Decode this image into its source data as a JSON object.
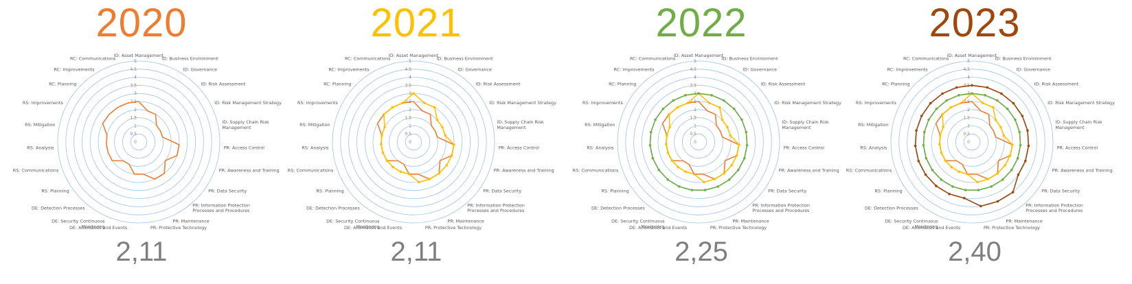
{
  "chart_data": {
    "type": "radar",
    "axes": [
      "ID: Asset Management",
      "ID: Business Environment",
      "ID: Governance",
      "ID: Risk Assessment",
      "ID: Risk Management Strategy",
      "ID: Supply Chain Risk Management",
      "PR: Access Control",
      "PR: Awareness and Training",
      "PR: Data Security",
      "PR: Information Protection Processes and Procedures",
      "PR: Maintenance",
      "PR: Protective Technology",
      "DE: Anomalies and Events",
      "DE: Security Continuous Monitoring",
      "DE: Detection Processes",
      "RS: Planning",
      "RS: Communications",
      "RS: Analysis",
      "RS: Mitigation",
      "RS: Improvements",
      "RC: Planning",
      "RC: Improvements",
      "RC: Communications"
    ],
    "axis_label_lines": [
      [
        "ID: Asset Management"
      ],
      [
        "ID: Business Environment"
      ],
      [
        "ID: Governance"
      ],
      [
        "ID: Risk Assessment"
      ],
      [
        "ID: Risk Management Strategy"
      ],
      [
        "ID: Supply Chain Risk",
        "Management"
      ],
      [
        "PR: Access Control"
      ],
      [
        "PR: Awareness and Training"
      ],
      [
        "PR: Data Security"
      ],
      [
        "PR: Information Protection",
        "Processes and Procedures"
      ],
      [
        "PR: Maintenance"
      ],
      [
        "PR: Protective Technology"
      ],
      [
        "DE: Anomalies and Events"
      ],
      [
        "DE: Security Continuous",
        "Monitoring"
      ],
      [
        "DE: Detection Processes"
      ],
      [
        "RS: Planning"
      ],
      [
        "RS: Communications"
      ],
      [
        "RS: Analysis"
      ],
      [
        "RS: Mitigation"
      ],
      [
        "RS: Improvements"
      ],
      [
        "RC: Planning"
      ],
      [
        "RC: Improvements"
      ],
      [
        "RC: Communications"
      ]
    ],
    "rmin": 0,
    "rmax": 5,
    "ticks": [
      "0",
      "0.5",
      "1",
      "1.5",
      "2",
      "2.5",
      "3",
      "3.5",
      "4",
      "4.5",
      "5"
    ],
    "grid_color": "#9dc3e6",
    "series": [
      {
        "key": "2020",
        "color": "#ed7d31",
        "markers": false,
        "values": [
          2.5,
          2,
          2,
          1.5,
          1.5,
          1.5,
          2.5,
          2.5,
          2,
          2.5,
          2.5,
          2,
          2,
          1.5,
          1.5,
          2,
          2,
          2,
          2,
          2.5,
          2.5,
          2.5,
          2.5
        ]
      },
      {
        "key": "2021",
        "color": "#ffc000",
        "markers": true,
        "values": [
          3,
          2.5,
          2.5,
          2,
          2,
          2,
          2.5,
          2.5,
          2.5,
          2.5,
          2.5,
          2.5,
          2,
          2,
          2,
          2,
          2,
          2,
          2,
          2,
          2.5,
          2.5,
          2.5
        ]
      },
      {
        "key": "2022",
        "color": "#70ad47",
        "markers": true,
        "values": [
          3,
          3,
          3,
          3,
          3,
          3,
          3,
          3,
          3,
          3,
          3,
          3,
          3,
          3,
          3,
          3,
          3,
          3,
          3,
          3,
          3,
          3,
          3
        ]
      },
      {
        "key": "2023",
        "color": "#9e480e",
        "markers": true,
        "values": [
          3.5,
          3.5,
          3.5,
          3.5,
          3.5,
          3.5,
          3.5,
          3.5,
          3.5,
          4,
          4,
          4,
          3.5,
          3.5,
          3.5,
          3.5,
          3.5,
          3.5,
          3.5,
          3.5,
          3.5,
          3.5,
          3.5
        ]
      }
    ],
    "panels": [
      {
        "year": "2020",
        "score": "2,11",
        "year_color": "#ed7d31",
        "series": [
          "2020"
        ]
      },
      {
        "year": "2021",
        "score": "2,11",
        "year_color": "#ffc000",
        "series": [
          "2021",
          "2020"
        ]
      },
      {
        "year": "2022",
        "score": "2,25",
        "year_color": "#70ad47",
        "series": [
          "2022",
          "2021",
          "2020"
        ]
      },
      {
        "year": "2023",
        "score": "2,40",
        "year_color": "#9e480e",
        "series": [
          "2023",
          "2022",
          "2021",
          "2020"
        ]
      }
    ]
  }
}
